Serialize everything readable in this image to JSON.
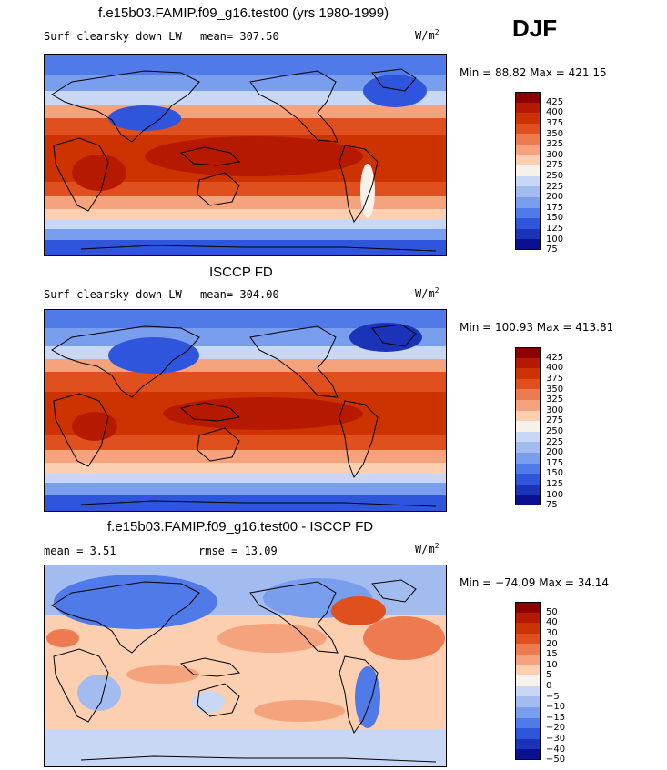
{
  "season": "DJF",
  "panels": [
    {
      "title": "f.e15b03.FAMIP.f09_g16.test00 (yrs 1980-1999)",
      "left_label": "Surf clearsky down LW",
      "mean_text": "mean= 307.50",
      "units_text": "W/m",
      "units_sup": "2",
      "minmax_text": "Min =  88.82 Max = 421.15",
      "levels": [
        "425",
        "400",
        "375",
        "350",
        "325",
        "300",
        "275",
        "250",
        "225",
        "200",
        "175",
        "150",
        "125",
        "100",
        "75"
      ]
    },
    {
      "title": "ISCCP FD",
      "left_label": "Surf clearsky down LW",
      "mean_text": "mean= 304.00",
      "units_text": "W/m",
      "units_sup": "2",
      "minmax_text": "Min = 100.93 Max = 413.81",
      "levels": [
        "425",
        "400",
        "375",
        "350",
        "325",
        "300",
        "275",
        "250",
        "225",
        "200",
        "175",
        "150",
        "125",
        "100",
        "75"
      ]
    },
    {
      "title": "f.e15b03.FAMIP.f09_g16.test00 - ISCCP FD",
      "left_label": "mean =   3.51",
      "mean_text": "rmse =  13.09",
      "units_text": "W/m",
      "units_sup": "2",
      "minmax_text": "Min = −74.09 Max =  34.14",
      "levels": [
        "50",
        "40",
        "30",
        "20",
        "15",
        "10",
        "5",
        "0",
        "−5",
        "−10",
        "−15",
        "−20",
        "−30",
        "−40",
        "−50"
      ]
    }
  ],
  "colorscale": [
    "#8c0000",
    "#b51a00",
    "#cc3300",
    "#e0501e",
    "#ee7a4f",
    "#f5a37d",
    "#fbcfb0",
    "#f6f1ea",
    "#c7d7f4",
    "#a3bcf0",
    "#7a9eee",
    "#4f7ae8",
    "#2f55dd",
    "#1b33b8",
    "#0a1190"
  ],
  "chart_data": [
    {
      "type": "heatmap",
      "title": "f.e15b03.FAMIP.f09_g16.test00 (yrs 1980-1999)",
      "variable": "Surf clearsky down LW",
      "units": "W/m2",
      "mean": 307.5,
      "min": 88.82,
      "max": 421.15,
      "contour_levels": [
        75,
        100,
        125,
        150,
        175,
        200,
        225,
        250,
        275,
        300,
        325,
        350,
        375,
        400,
        425
      ]
    },
    {
      "type": "heatmap",
      "title": "ISCCP FD",
      "variable": "Surf clearsky down LW",
      "units": "W/m2",
      "mean": 304.0,
      "min": 100.93,
      "max": 413.81,
      "contour_levels": [
        75,
        100,
        125,
        150,
        175,
        200,
        225,
        250,
        275,
        300,
        325,
        350,
        375,
        400,
        425
      ]
    },
    {
      "type": "heatmap",
      "title": "f.e15b03.FAMIP.f09_g16.test00 - ISCCP FD",
      "units": "W/m2",
      "mean": 3.51,
      "rmse": 13.09,
      "min": -74.09,
      "max": 34.14,
      "contour_levels": [
        -50,
        -40,
        -30,
        -20,
        -15,
        -10,
        -5,
        0,
        5,
        10,
        15,
        20,
        30,
        40,
        50
      ]
    }
  ]
}
